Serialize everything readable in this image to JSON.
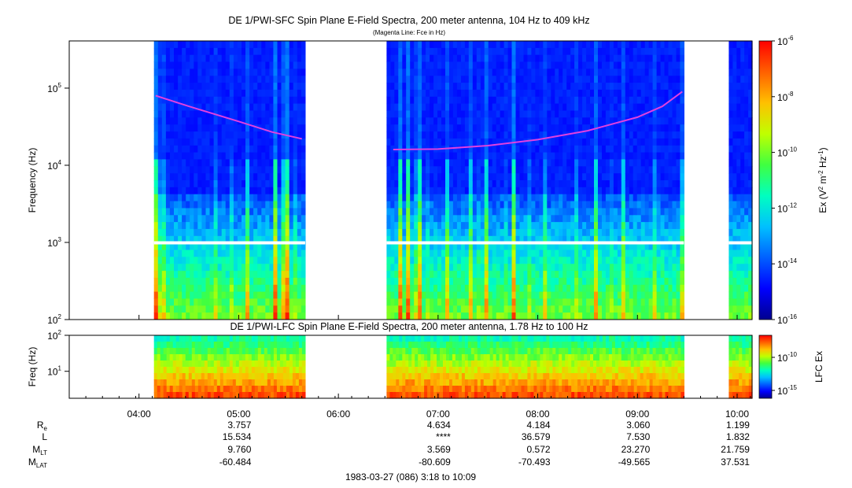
{
  "chart_data": [
    {
      "type": "heatmap",
      "title": "DE 1/PWI-SFC  Spin Plane E-Field Spectra, 200 meter antenna, 104 Hz to 409 kHz",
      "subtitle": "(Magenta Line: Fce in Hz)",
      "ylabel": "Frequency (Hz)",
      "yscale": "log",
      "ylim": [
        100,
        409000
      ],
      "yticks": [
        {
          "value": 100,
          "base": "10",
          "exp": "2"
        },
        {
          "value": 1000,
          "base": "10",
          "exp": "3"
        },
        {
          "value": 10000,
          "base": "10",
          "exp": "4"
        },
        {
          "value": 100000,
          "base": "10",
          "exp": "5"
        }
      ],
      "colorbar": {
        "label": "Ex (V2 m-2 Hz-1)",
        "scale": "log",
        "range": [
          1e-16,
          1e-06
        ],
        "ticks": [
          {
            "base": "10",
            "exp": "-6"
          },
          {
            "base": "10",
            "exp": "-8"
          },
          {
            "base": "10",
            "exp": "-10"
          },
          {
            "base": "10",
            "exp": "-12"
          },
          {
            "base": "10",
            "exp": "-14"
          },
          {
            "base": "10",
            "exp": "-16"
          }
        ]
      },
      "data_intervals": [
        [
          "04:09",
          "05:40"
        ],
        [
          "06:29",
          "09:28"
        ],
        [
          "09:55",
          "10:09"
        ]
      ],
      "fce_line": [
        {
          "time": "04:10",
          "fce": 80000
        },
        {
          "time": "04:30",
          "fce": 58000
        },
        {
          "time": "05:00",
          "fce": 37000
        },
        {
          "time": "05:20",
          "fce": 27000
        },
        {
          "time": "05:38",
          "fce": 22000
        },
        {
          "time": "06:33",
          "fce": 16000
        },
        {
          "time": "07:00",
          "fce": 16200
        },
        {
          "time": "07:30",
          "fce": 18000
        },
        {
          "time": "08:00",
          "fce": 21500
        },
        {
          "time": "08:30",
          "fce": 28000
        },
        {
          "time": "09:00",
          "fce": 42000
        },
        {
          "time": "09:15",
          "fce": 58000
        },
        {
          "time": "09:27",
          "fce": 90000
        }
      ]
    },
    {
      "type": "heatmap",
      "title": "DE 1/PWI-LFC  Spin Plane E-Field Spectra, 200 meter antenna, 1.78 Hz to 100 Hz",
      "ylabel": "Freq (Hz)",
      "yscale": "log",
      "ylim": [
        1.78,
        100
      ],
      "yticks": [
        {
          "value": 10,
          "base": "10",
          "exp": "1"
        },
        {
          "value": 100,
          "base": "10",
          "exp": "2"
        }
      ],
      "colorbar": {
        "label": "LFC Ex",
        "scale": "log",
        "ticks": [
          {
            "base": "10",
            "exp": "-10"
          },
          {
            "base": "10",
            "exp": "-15"
          }
        ]
      },
      "data_intervals": [
        [
          "04:09",
          "05:40"
        ],
        [
          "06:29",
          "09:28"
        ],
        [
          "09:55",
          "10:09"
        ]
      ]
    }
  ],
  "time_axis": {
    "range": [
      "03:18",
      "10:09"
    ],
    "ticks": [
      "04:00",
      "05:00",
      "06:00",
      "07:00",
      "08:00",
      "09:00",
      "10:00"
    ]
  },
  "ephemeris": {
    "labels": {
      "re": {
        "main": "R",
        "sub": "e"
      },
      "l": {
        "main": "L",
        "sub": ""
      },
      "mlt": {
        "main": "M",
        "sub": "LT"
      },
      "mlat": {
        "main": "M",
        "sub": "LAT"
      }
    },
    "columns": [
      {
        "time": "05:00",
        "re": "3.757",
        "l": "15.534",
        "mlt": "9.760",
        "mlat": "-60.484"
      },
      {
        "time": "07:00",
        "re": "4.634",
        "l": "****",
        "mlt": "3.569",
        "mlat": "-80.609"
      },
      {
        "time": "08:00",
        "re": "4.184",
        "l": "36.579",
        "mlt": "0.572",
        "mlat": "-70.493"
      },
      {
        "time": "09:00",
        "re": "3.060",
        "l": "7.530",
        "mlt": "23.270",
        "mlat": "-49.565"
      },
      {
        "time": "10:00",
        "re": "1.199",
        "l": "1.832",
        "mlt": "21.759",
        "mlat": "37.531"
      }
    ]
  },
  "footer": "1983-03-27 (086) 3:18 to 10:09",
  "colors": {
    "fce_line": "#e040e0",
    "colormap": [
      "#00008f",
      "#0000ff",
      "#0060ff",
      "#00c0ff",
      "#00ffc0",
      "#40ff40",
      "#c0ff00",
      "#ffc000",
      "#ff6000",
      "#ff0000"
    ]
  }
}
